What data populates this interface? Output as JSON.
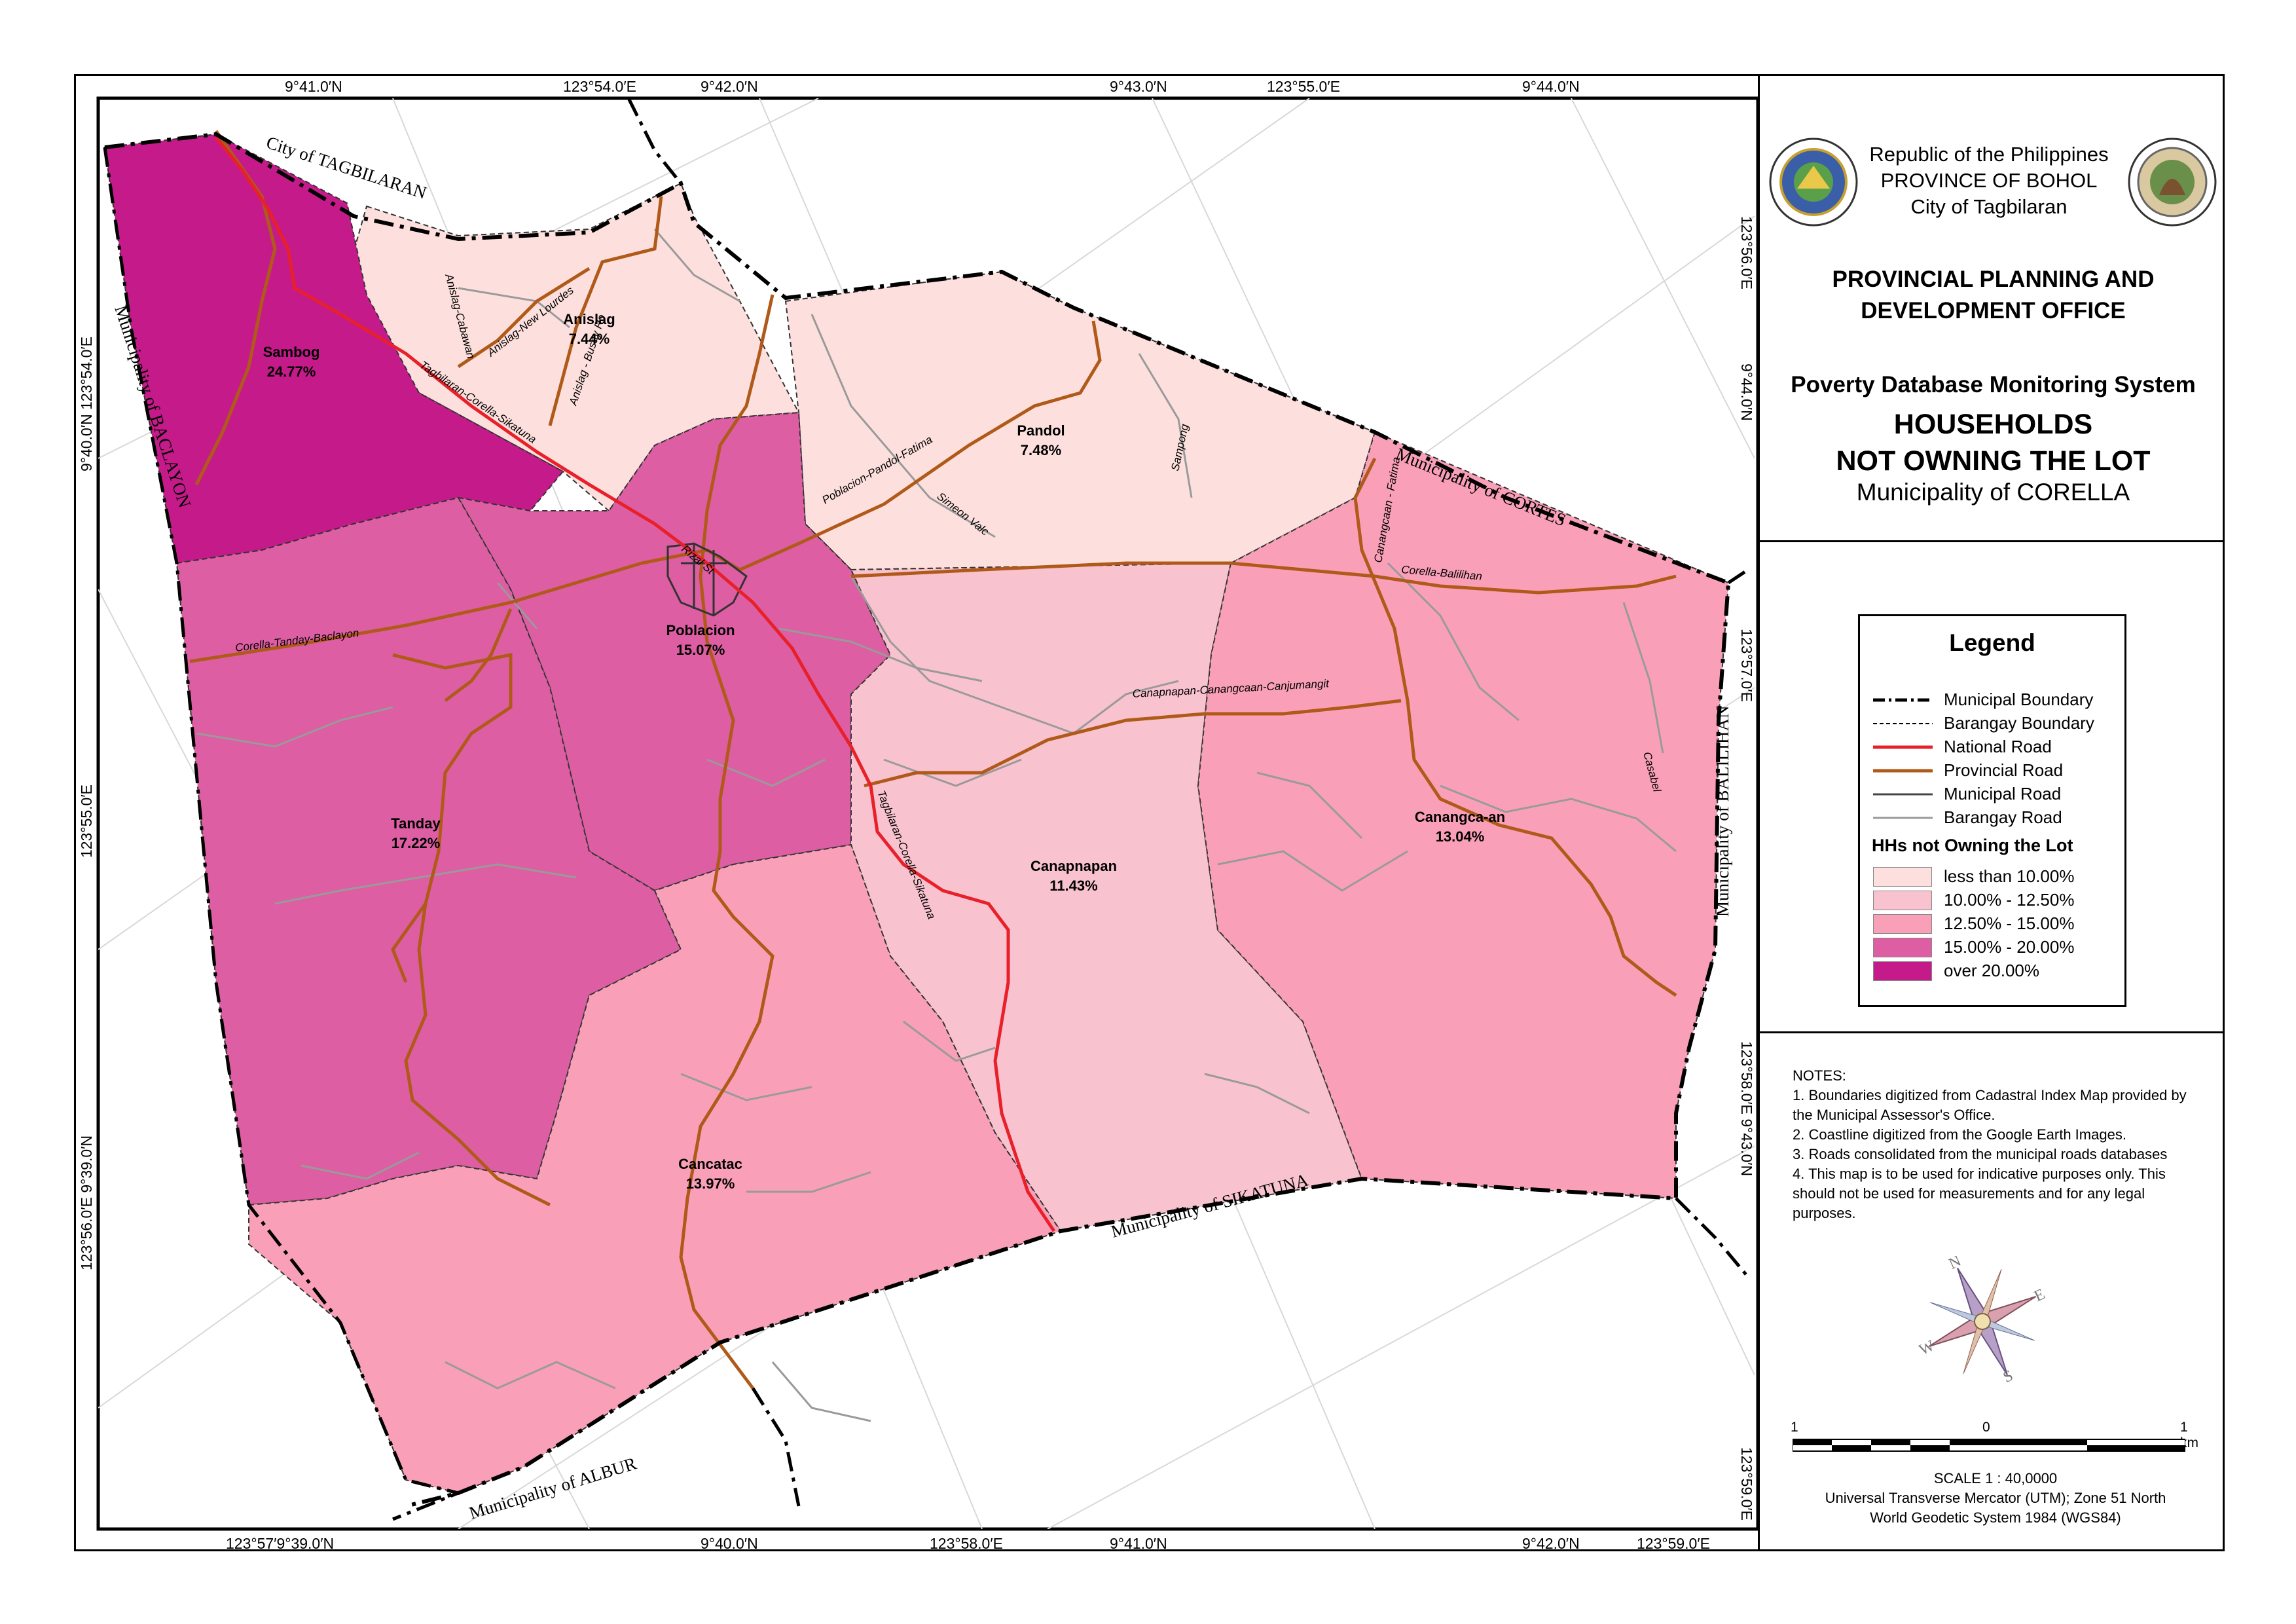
{
  "map": {
    "coords_top": [
      "9°41.0′N",
      "123°54.0′E",
      "9°42.0′N",
      "9°43.0′N",
      "123°55.0′E",
      "9°44.0′N"
    ],
    "coords_bottom": [
      "123°57′9°39.0′N",
      "9°40.0′N",
      "123°58.0′E",
      "9°41.0′N",
      "9°42.0′N",
      "123°59.0′E"
    ],
    "coords_left": [
      "9°40.0′N 123°54.0′E",
      "123°55.0′E",
      "123°56.0′E 9°39.0′N"
    ],
    "coords_right": [
      "123°56.0′E",
      "9°44.0′N",
      "123°57.0′E",
      "123°58.0′E 9°43.0′N",
      "123°59.0′E"
    ],
    "neighbors": {
      "tagbilaran": "City of TAGBILARAN",
      "baclayon": "Municipality of BACLAYON",
      "cortes": "Municipality of CORTES",
      "balilihan": "Municipality of BALILIHAN",
      "sikatuna": "Municipality of SIKATUNA",
      "albur": "Municipality of ALBUR"
    },
    "barangays": [
      {
        "name": "Sambog",
        "value": "24.77%",
        "fill": "#c51b8a"
      },
      {
        "name": "Anislag",
        "value": "7.44%",
        "fill": "#fde0dd"
      },
      {
        "name": "Pandol",
        "value": "7.48%",
        "fill": "#fde0dd"
      },
      {
        "name": "Poblacion",
        "value": "15.07%",
        "fill": "#dd5ea3"
      },
      {
        "name": "Tanday",
        "value": "17.22%",
        "fill": "#dd5ea3"
      },
      {
        "name": "Canapnapan",
        "value": "11.43%",
        "fill": "#f9c2cf"
      },
      {
        "name": "Canangca-an",
        "value": "13.04%",
        "fill": "#f9a0b8"
      },
      {
        "name": "Cancatac",
        "value": "13.97%",
        "fill": "#f9a0b8"
      }
    ],
    "roads": {
      "tagbilaran_corella_sikatuna": "Tagbilaran-Corella-Sikatuna",
      "tagbilaran_corella_sikatuna_2": "Tagbilaran-Corella-Sikatuna",
      "anislag_cabawan": "Anislag-Cabawan",
      "anislag_new_lourdes": "Anislag-New Lourdes",
      "anislag_busay": "Anislag - Busay Ro",
      "poblacion_pandol_fatima": "Poblacion-Pandol-Fatima",
      "simeon_valc": "Simeon Valc",
      "sampong": "Sampong",
      "canangcaan_fatima": "Canangcaan - Fatima",
      "corella_balilihan": "Corella-Balilihan",
      "corella_tanday_baclayon": "Corella-Tanday-Baclayon",
      "canapnapan_canjumangit": "Canapnapan-Canangcaan-Canjumangit",
      "casabel": "Casabel",
      "rizal_st": "Rizal St"
    }
  },
  "header": {
    "gov_lines": [
      "Republic of the Philippines",
      "PROVINCE OF BOHOL",
      "City of Tagbilaran"
    ],
    "office_lines": [
      "PROVINCIAL PLANNING AND",
      "DEVELOPMENT OFFICE"
    ],
    "system": "Poverty Database Monitoring System",
    "title_lines": [
      "HOUSEHOLDS",
      "NOT OWNING THE LOT"
    ],
    "municipality": "Municipality of CORELLA",
    "seal_left_text": "PROVINCE OF BOHOL",
    "seal_right_text": "MUNICIPALITY OF CORELLA"
  },
  "legend": {
    "title": "Legend",
    "lines": [
      {
        "label": "Municipal Boundary",
        "color": "#000000",
        "style": "dashdot"
      },
      {
        "label": "Barangay Boundary",
        "color": "#000000",
        "style": "dashed"
      },
      {
        "label": "National Road",
        "color": "#e8202a",
        "style": "solid"
      },
      {
        "label": "Provincial Road",
        "color": "#b05a1a",
        "style": "solid"
      },
      {
        "label": "Municipal Road",
        "color": "#444444",
        "style": "solid"
      },
      {
        "label": "Barangay Road",
        "color": "#9a9a9a",
        "style": "solid"
      }
    ],
    "class_title": "HHs not Owning the Lot",
    "classes": [
      {
        "label": "less than 10.00%",
        "color": "#fde0dd"
      },
      {
        "label": "10.00% - 12.50%",
        "color": "#f9c2cf"
      },
      {
        "label": "12.50% - 15.00%",
        "color": "#f9a0b8"
      },
      {
        "label": "15.00% - 20.00%",
        "color": "#dd5ea3"
      },
      {
        "label": "over 20.00%",
        "color": "#c51b8a"
      }
    ]
  },
  "notes": {
    "heading": "NOTES:",
    "items": [
      "1. Boundaries digitized from Cadastral Index Map provided by the Municipal Assessor's Office.",
      "2. Coastline digitized from the Google Earth Images.",
      "3. Roads consolidated from the municipal roads databases",
      "4. This map is to be used for indicative purposes only. This should not be used for measurements and for any legal purposes."
    ]
  },
  "scale": {
    "left": "1",
    "mid": "0",
    "right": "1 km",
    "ratio": "SCALE     1     :     40,0000",
    "projection": "Universal Transverse Mercator (UTM);  Zone 51 North",
    "datum": "World Geodetic System 1984 (WGS84)"
  },
  "compass": {
    "n": "N",
    "s": "S",
    "e": "E",
    "w": "W"
  }
}
